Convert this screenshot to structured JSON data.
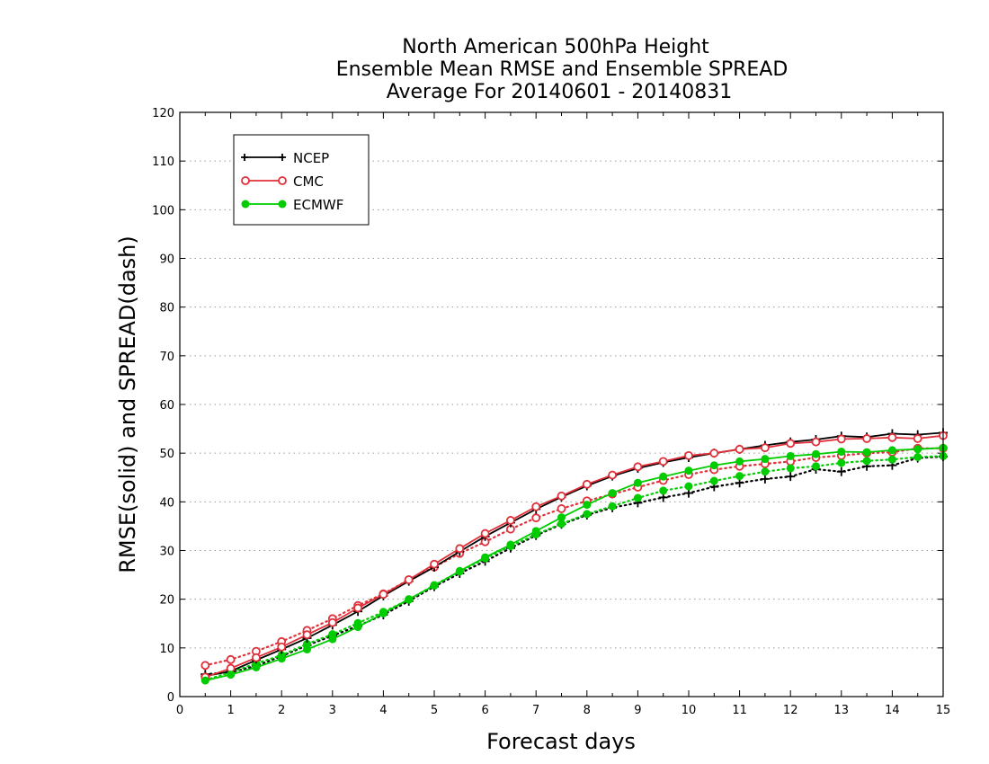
{
  "chart_data": {
    "type": "line",
    "title": [
      "North American 500hPa Height",
      "Ensemble Mean RMSE and Ensemble SPREAD",
      "Average For 20140601 - 20140831"
    ],
    "xlabel": "Forecast days",
    "ylabel": "RMSE(solid) and SPREAD(dash)",
    "xlim": [
      0,
      15
    ],
    "ylim": [
      0,
      120
    ],
    "xticks": [
      0,
      1,
      2,
      3,
      4,
      5,
      6,
      7,
      8,
      9,
      10,
      11,
      12,
      13,
      14,
      15
    ],
    "yticks": [
      0,
      10,
      20,
      30,
      40,
      50,
      60,
      70,
      80,
      90,
      100,
      110,
      120
    ],
    "grid": true,
    "legend": "top-left",
    "x": [
      0.5,
      1,
      1.5,
      2,
      2.5,
      3,
      3.5,
      4,
      4.5,
      5,
      5.5,
      6,
      6.5,
      7,
      7.5,
      8,
      8.5,
      9,
      9.5,
      10,
      10.5,
      11,
      11.5,
      12,
      12.5,
      13,
      13.5,
      14,
      14.5,
      15
    ],
    "series": [
      {
        "name": "NCEP",
        "kind": "rmse",
        "marker": "plus",
        "color": "#000000",
        "values": [
          4.2,
          5.2,
          7.5,
          9.7,
          12.0,
          14.7,
          17.5,
          20.7,
          23.7,
          26.6,
          29.8,
          32.9,
          35.7,
          38.5,
          41.0,
          43.3,
          45.3,
          46.9,
          48.1,
          49.1,
          50.0,
          50.8,
          51.6,
          52.3,
          52.8,
          53.5,
          53.3,
          54.0,
          53.8,
          54.2
        ]
      },
      {
        "name": "CMC",
        "kind": "rmse",
        "marker": "open-circle",
        "color": "#e0303a",
        "values": [
          4.0,
          5.8,
          8.0,
          10.2,
          12.7,
          15.2,
          18.2,
          21.0,
          24.0,
          27.2,
          30.4,
          33.5,
          36.2,
          39.0,
          41.2,
          43.6,
          45.5,
          47.2,
          48.3,
          49.5,
          50.0,
          50.8,
          51.1,
          52.0,
          52.3,
          52.9,
          53.0,
          53.2,
          53.0,
          53.6
        ]
      },
      {
        "name": "ECMWF",
        "kind": "rmse",
        "marker": "filled-circle",
        "color": "#00cc00",
        "values": [
          3.3,
          4.5,
          6.0,
          7.8,
          9.7,
          11.8,
          14.3,
          17.1,
          20.0,
          22.8,
          25.8,
          28.6,
          31.2,
          34.0,
          36.8,
          39.4,
          41.8,
          43.9,
          45.2,
          46.4,
          47.5,
          48.3,
          48.8,
          49.4,
          49.8,
          50.3,
          50.2,
          50.6,
          50.8,
          51.1
        ]
      },
      {
        "name": "NCEP",
        "kind": "spread",
        "marker": "plus",
        "color": "#000000",
        "values": [
          4.6,
          5.0,
          6.3,
          8.3,
          10.5,
          12.5,
          14.5,
          16.8,
          19.6,
          22.6,
          25.3,
          27.8,
          30.5,
          33.1,
          35.4,
          37.3,
          38.8,
          39.8,
          40.9,
          41.8,
          43.1,
          43.9,
          44.7,
          45.2,
          46.7,
          46.2,
          47.3,
          47.5,
          49.0,
          49.3
        ]
      },
      {
        "name": "CMC",
        "kind": "spread",
        "marker": "open-circle",
        "color": "#e0303a",
        "values": [
          6.4,
          7.6,
          9.3,
          11.3,
          13.6,
          16.0,
          18.7,
          21.1,
          24.0,
          26.6,
          29.4,
          31.8,
          34.4,
          36.7,
          38.6,
          40.2,
          41.6,
          43.0,
          44.4,
          45.6,
          46.6,
          47.3,
          47.8,
          48.3,
          49.1,
          49.5,
          50.0,
          50.2,
          51.0,
          51.0
        ]
      },
      {
        "name": "ECMWF",
        "kind": "spread",
        "marker": "filled-circle",
        "color": "#00cc00",
        "values": [
          3.4,
          5.0,
          6.8,
          8.5,
          10.8,
          12.8,
          15.1,
          17.4,
          19.9,
          22.9,
          25.7,
          28.4,
          30.9,
          33.3,
          35.5,
          37.5,
          39.1,
          40.8,
          42.3,
          43.2,
          44.3,
          45.3,
          46.2,
          46.9,
          47.3,
          48.0,
          48.4,
          48.7,
          49.2,
          49.4
        ]
      }
    ]
  }
}
